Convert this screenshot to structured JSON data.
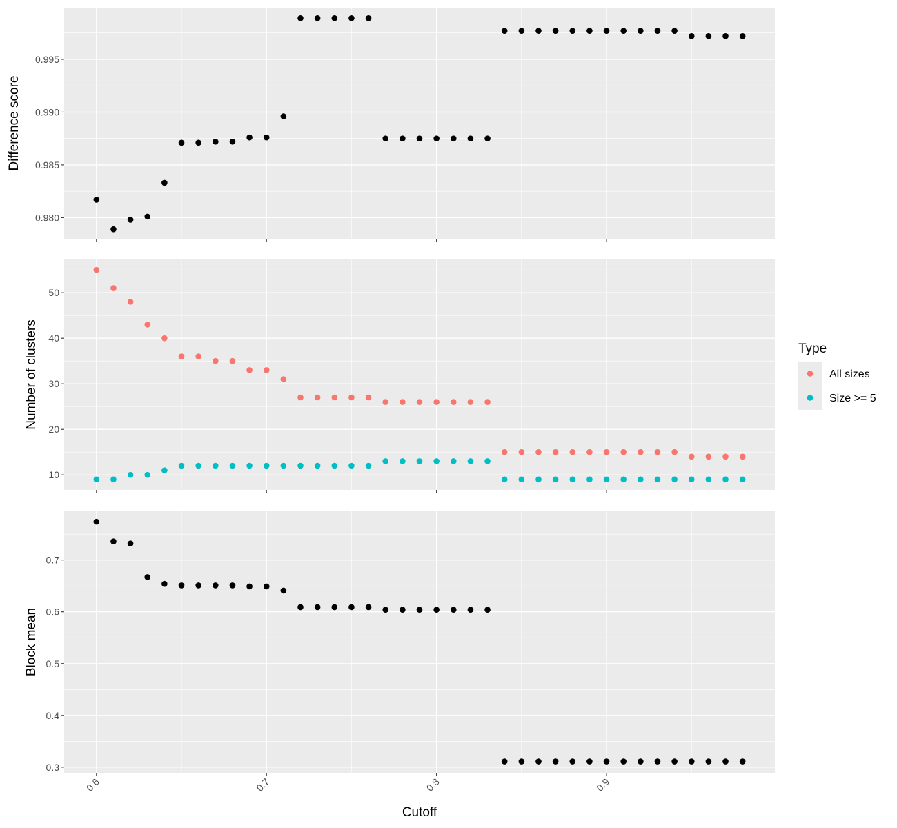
{
  "chart_data": {
    "type": "scatter",
    "x": [
      0.6,
      0.61,
      0.62,
      0.63,
      0.64,
      0.65,
      0.66,
      0.67,
      0.68,
      0.69,
      0.7,
      0.71,
      0.72,
      0.73,
      0.74,
      0.75,
      0.76,
      0.77,
      0.78,
      0.79,
      0.8,
      0.81,
      0.82,
      0.83,
      0.84,
      0.85,
      0.86,
      0.87,
      0.88,
      0.89,
      0.9,
      0.91,
      0.92,
      0.93,
      0.94,
      0.95,
      0.96,
      0.97,
      0.98
    ],
    "xlabel": "Cutoff",
    "xlim": [
      0.581,
      0.999
    ],
    "xticks": [
      0.6,
      0.7,
      0.8,
      0.9
    ],
    "xtick_labels": [
      "0.6",
      "0.7",
      "0.8",
      "0.9"
    ],
    "panels": [
      {
        "id": "difference",
        "ylabel": "Difference score",
        "ylim": [
          0.978,
          0.9999
        ],
        "yticks": [
          0.98,
          0.985,
          0.99,
          0.995
        ],
        "ytick_labels": [
          "0.980",
          "0.985",
          "0.990",
          "0.995"
        ],
        "series": [
          {
            "name": "Difference score",
            "color": "#000000",
            "values": [
              0.9817,
              0.9789,
              0.9798,
              0.9801,
              0.9833,
              0.9871,
              0.9871,
              0.9872,
              0.9872,
              0.9876,
              0.9876,
              0.9896,
              0.9989,
              0.9989,
              0.9989,
              0.9989,
              0.9989,
              0.9875,
              0.9875,
              0.9875,
              0.9875,
              0.9875,
              0.9875,
              0.9875,
              0.9977,
              0.9977,
              0.9977,
              0.9977,
              0.9977,
              0.9977,
              0.9977,
              0.9977,
              0.9977,
              0.9977,
              0.9977,
              0.9972,
              0.9972,
              0.9972,
              0.9972
            ]
          }
        ]
      },
      {
        "id": "clusters",
        "ylabel": "Number of clusters",
        "ylim": [
          6.7,
          57.3
        ],
        "yticks": [
          10,
          20,
          30,
          40,
          50
        ],
        "ytick_labels": [
          "10",
          "20",
          "30",
          "40",
          "50"
        ],
        "series": [
          {
            "name": "All sizes",
            "color": "#F8766D",
            "values": [
              55,
              51,
              48,
              43,
              40,
              36,
              36,
              35,
              35,
              33,
              33,
              31,
              27,
              27,
              27,
              27,
              27,
              26,
              26,
              26,
              26,
              26,
              26,
              26,
              15,
              15,
              15,
              15,
              15,
              15,
              15,
              15,
              15,
              15,
              15,
              14,
              14,
              14,
              14
            ]
          },
          {
            "name": "Size >= 5",
            "color": "#00BFC4",
            "values": [
              9,
              9,
              10,
              10,
              11,
              12,
              12,
              12,
              12,
              12,
              12,
              12,
              12,
              12,
              12,
              12,
              12,
              13,
              13,
              13,
              13,
              13,
              13,
              13,
              9,
              9,
              9,
              9,
              9,
              9,
              9,
              9,
              9,
              9,
              9,
              9,
              9,
              9,
              9
            ]
          }
        ]
      },
      {
        "id": "blockmean",
        "ylabel": "Block mean",
        "ylim": [
          0.2878,
          0.7955
        ],
        "yticks": [
          0.3,
          0.4,
          0.5,
          0.6,
          0.7
        ],
        "ytick_labels": [
          "0.3",
          "0.4",
          "0.5",
          "0.6",
          "0.7"
        ],
        "series": [
          {
            "name": "Block mean",
            "color": "#000000",
            "values": [
              0.774,
              0.736,
              0.732,
              0.667,
              0.654,
              0.651,
              0.651,
              0.651,
              0.651,
              0.649,
              0.649,
              0.641,
              0.609,
              0.609,
              0.609,
              0.609,
              0.609,
              0.604,
              0.604,
              0.604,
              0.604,
              0.604,
              0.604,
              0.604,
              0.311,
              0.311,
              0.311,
              0.311,
              0.311,
              0.311,
              0.311,
              0.311,
              0.311,
              0.311,
              0.311,
              0.311,
              0.311,
              0.311,
              0.311
            ]
          }
        ]
      }
    ],
    "legend": {
      "title": "Type",
      "position": "right",
      "entries": [
        {
          "label": "All sizes",
          "color": "#F8766D"
        },
        {
          "label": "Size >= 5",
          "color": "#00BFC4"
        }
      ]
    }
  }
}
